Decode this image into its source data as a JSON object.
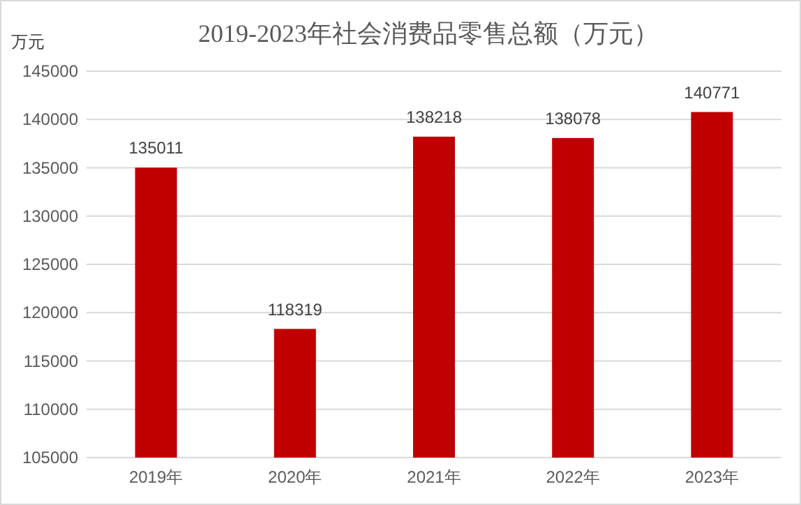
{
  "chart_data": {
    "type": "bar",
    "title": "2019-2023年社会消费品零售总额（万元）",
    "ylabel": "万元",
    "categories": [
      "2019年",
      "2020年",
      "2021年",
      "2022年",
      "2023年"
    ],
    "values": [
      135011,
      118319,
      138218,
      138078,
      140771
    ],
    "color": "#c00000",
    "ylim": [
      105000,
      145000
    ],
    "yticks": [
      105000,
      110000,
      115000,
      120000,
      125000,
      130000,
      135000,
      140000,
      145000
    ],
    "grid": "y",
    "data_labels": true
  }
}
